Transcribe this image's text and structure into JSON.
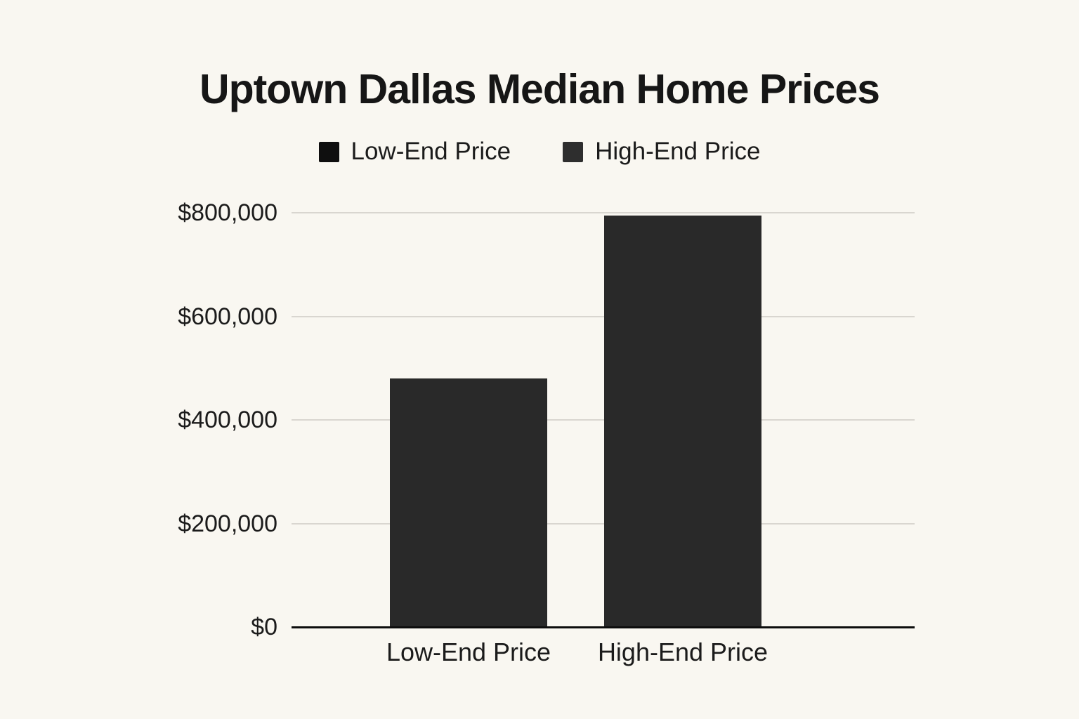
{
  "chart_data": {
    "type": "bar",
    "title": "Uptown Dallas Median Home Prices",
    "categories": [
      "Low-End Price",
      "High-End Price"
    ],
    "values": [
      480000,
      795000
    ],
    "series": [
      {
        "name": "Low-End Price",
        "values": [
          480000,
          null
        ]
      },
      {
        "name": "High-End Price",
        "values": [
          null,
          795000
        ]
      }
    ],
    "xlabel": "",
    "ylabel": "",
    "ylim": [
      0,
      800000
    ],
    "grid": true,
    "legend_position": "top",
    "y_ticks": [
      {
        "value": 800000,
        "label": "$800,000"
      },
      {
        "value": 600000,
        "label": "$600,000"
      },
      {
        "value": 400000,
        "label": "$400,000"
      },
      {
        "value": 200000,
        "label": "$200,000"
      },
      {
        "value": 0,
        "label": "$0"
      }
    ],
    "legend": [
      {
        "label": "Low-End Price",
        "marker_color": "#0f0f0f"
      },
      {
        "label": "High-End Price",
        "marker_color": "#2e2e2e"
      }
    ],
    "colors": {
      "background": "#f9f7f1",
      "bar": "#292929",
      "gridline": "#d9d6d0",
      "axis_line": "#0d0d0d",
      "title_text": "#161616",
      "tick_text": "#1b1b1b"
    }
  }
}
